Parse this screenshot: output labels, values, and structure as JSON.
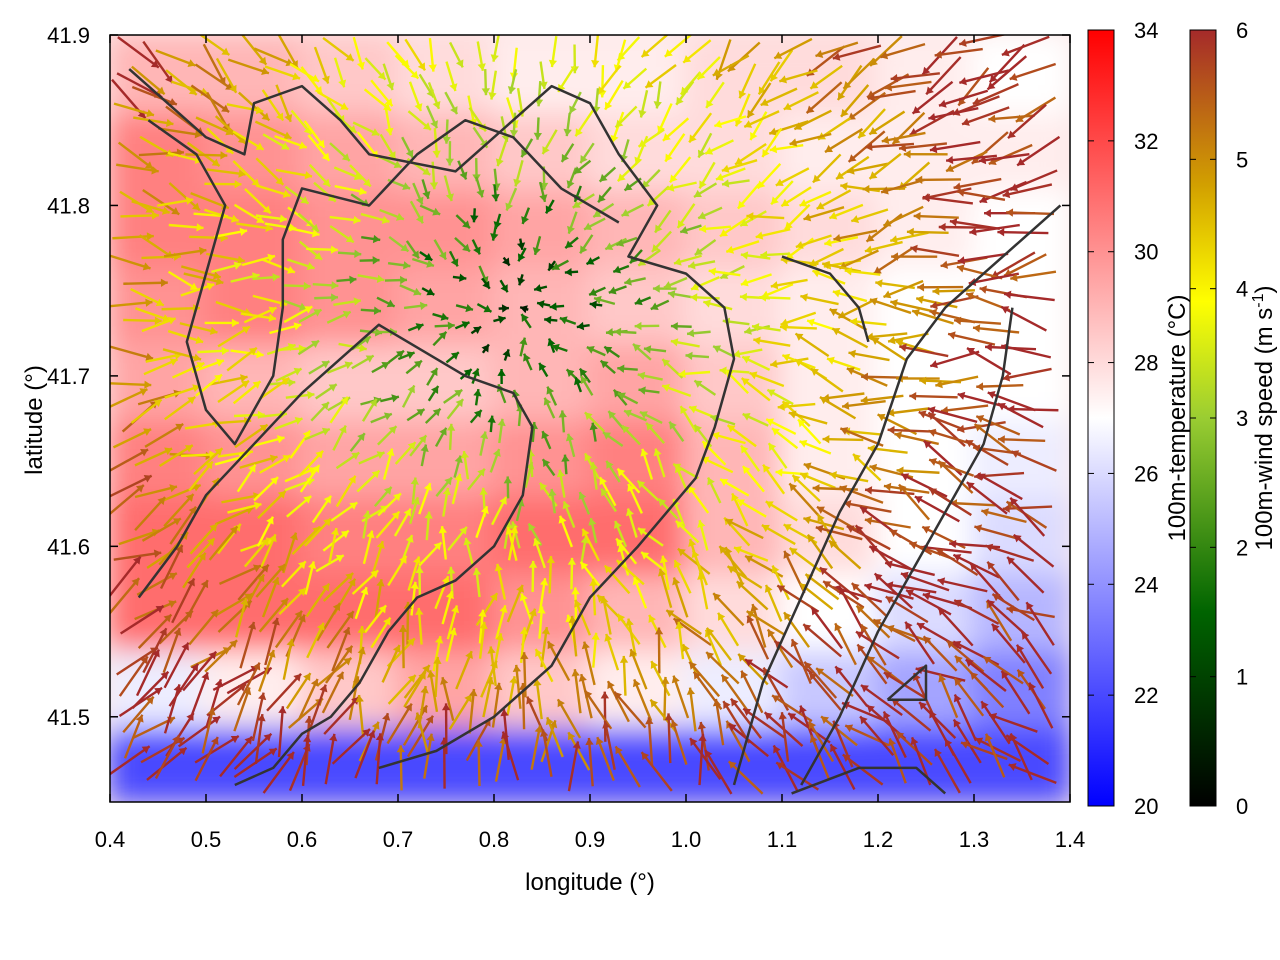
{
  "chart_data": {
    "type": "heatmap",
    "xlabel": "longitude (°)",
    "ylabel": "latitude (°)",
    "xlim": [
      0.4,
      1.4
    ],
    "ylim": [
      41.45,
      41.9
    ],
    "xticks": [
      0.4,
      0.5,
      0.6,
      0.7,
      0.8,
      0.9,
      1.0,
      1.1,
      1.2,
      1.3,
      1.4
    ],
    "xtick_labels": [
      "0.4",
      "0.5",
      "0.6",
      "0.7",
      "0.8",
      "0.9",
      "1.0",
      "1.1",
      "1.2",
      "1.3",
      "1.4"
    ],
    "yticks": [
      41.5,
      41.6,
      41.7,
      41.8,
      41.9
    ],
    "ytick_labels": [
      "41.5",
      "41.6",
      "41.7",
      "41.8",
      "41.9"
    ],
    "grid": false,
    "layers": {
      "heatmap": {
        "quantity": "100m-temperature",
        "colorbar_label": "100m-temperature (°C)",
        "range": [
          20,
          34
        ],
        "ticks": [
          20,
          22,
          24,
          26,
          28,
          30,
          32,
          34
        ],
        "tick_labels": [
          "20",
          "22",
          "24",
          "26",
          "28",
          "30",
          "32",
          "34"
        ],
        "colors": [
          "#0000ff",
          "#ffffff",
          "#ff0000"
        ],
        "field": [
          [
            22,
            22,
            22,
            22,
            22,
            22,
            22,
            22,
            22,
            22
          ],
          [
            26.5,
            27.5,
            28.5,
            29.5,
            28.5,
            27.5,
            26.5,
            25.5,
            24.5,
            23.5
          ],
          [
            31,
            31,
            31,
            31,
            30,
            29,
            28,
            27,
            26,
            25
          ],
          [
            31,
            31,
            30.5,
            30.5,
            31,
            31,
            29,
            28,
            27,
            26
          ],
          [
            30.5,
            30,
            29.5,
            29.5,
            30,
            30.5,
            29,
            27.5,
            27,
            26.5
          ],
          [
            29.5,
            29,
            28.5,
            28.5,
            29,
            29.5,
            28.5,
            27.5,
            27,
            27
          ],
          [
            30,
            30.5,
            30,
            29.5,
            29,
            28.5,
            28,
            27.5,
            27,
            27
          ],
          [
            30.5,
            30.5,
            30,
            30,
            29.5,
            29,
            28.5,
            28,
            27.5,
            27
          ],
          [
            30.5,
            30,
            29.5,
            29,
            28.5,
            28,
            28,
            27.5,
            27.5,
            27.5
          ],
          [
            29,
            29,
            28.5,
            28,
            27.5,
            27.5,
            28,
            28,
            27.5,
            27
          ]
        ]
      },
      "wind_vectors": {
        "quantity": "100m-wind speed",
        "colorbar_label": "100m-wind speed (m s⁻¹)",
        "colorbar_label_main": "100m-wind speed (m s",
        "colorbar_label_sup": "-1",
        "colorbar_label_end": ")",
        "range": [
          0,
          6
        ],
        "ticks": [
          0,
          1,
          2,
          3,
          4,
          5,
          6
        ],
        "tick_labels": [
          "0",
          "1",
          "2",
          "3",
          "4",
          "5",
          "6"
        ],
        "colors": [
          "#000000",
          "#006400",
          "#9acd32",
          "#ffff00",
          "#d2a000",
          "#a52a2a"
        ],
        "convergence_zone_approx": [
          0.82,
          41.74
        ]
      },
      "contours": {
        "color": "#333333",
        "lines": [
          [
            [
              0.42,
              41.88
            ],
            [
              0.5,
              41.84
            ],
            [
              0.54,
              41.83
            ],
            [
              0.55,
              41.86
            ],
            [
              0.6,
              41.87
            ],
            [
              0.64,
              41.85
            ],
            [
              0.67,
              41.83
            ],
            [
              0.76,
              41.82
            ],
            [
              0.82,
              41.85
            ],
            [
              0.86,
              41.87
            ],
            [
              0.9,
              41.86
            ],
            [
              0.93,
              41.83
            ],
            [
              0.97,
              41.8
            ],
            [
              0.94,
              41.77
            ],
            [
              1.0,
              41.76
            ],
            [
              1.04,
              41.74
            ],
            [
              1.05,
              41.71
            ],
            [
              1.03,
              41.67
            ],
            [
              1.01,
              41.64
            ],
            [
              0.95,
              41.6
            ],
            [
              0.9,
              41.57
            ],
            [
              0.86,
              41.53
            ],
            [
              0.8,
              41.5
            ],
            [
              0.74,
              41.48
            ],
            [
              0.68,
              41.47
            ]
          ],
          [
            [
              0.44,
              41.85
            ],
            [
              0.49,
              41.83
            ],
            [
              0.52,
              41.8
            ],
            [
              0.5,
              41.76
            ],
            [
              0.48,
              41.72
            ],
            [
              0.5,
              41.68
            ],
            [
              0.53,
              41.66
            ],
            [
              0.57,
              41.7
            ],
            [
              0.58,
              41.74
            ],
            [
              0.58,
              41.78
            ],
            [
              0.6,
              41.81
            ],
            [
              0.67,
              41.8
            ],
            [
              0.72,
              41.83
            ],
            [
              0.77,
              41.85
            ],
            [
              0.82,
              41.84
            ],
            [
              0.87,
              41.81
            ],
            [
              0.93,
              41.79
            ]
          ],
          [
            [
              0.43,
              41.57
            ],
            [
              0.47,
              41.6
            ],
            [
              0.5,
              41.63
            ],
            [
              0.55,
              41.66
            ],
            [
              0.6,
              41.69
            ],
            [
              0.64,
              41.71
            ],
            [
              0.68,
              41.73
            ],
            [
              0.71,
              41.72
            ],
            [
              0.77,
              41.7
            ],
            [
              0.82,
              41.69
            ],
            [
              0.84,
              41.67
            ],
            [
              0.83,
              41.63
            ],
            [
              0.8,
              41.6
            ],
            [
              0.76,
              41.58
            ],
            [
              0.72,
              41.57
            ],
            [
              0.69,
              41.55
            ],
            [
              0.66,
              41.52
            ],
            [
              0.63,
              41.5
            ],
            [
              0.6,
              41.49
            ],
            [
              0.57,
              41.47
            ],
            [
              0.53,
              41.46
            ]
          ],
          [
            [
              1.05,
              41.46
            ],
            [
              1.08,
              41.52
            ],
            [
              1.12,
              41.57
            ],
            [
              1.16,
              41.62
            ],
            [
              1.2,
              41.66
            ],
            [
              1.23,
              41.71
            ],
            [
              1.27,
              41.74
            ],
            [
              1.31,
              41.76
            ],
            [
              1.35,
              41.78
            ],
            [
              1.39,
              41.8
            ]
          ],
          [
            [
              1.12,
              41.46
            ],
            [
              1.16,
              41.5
            ],
            [
              1.2,
              41.55
            ],
            [
              1.24,
              41.59
            ],
            [
              1.28,
              41.63
            ],
            [
              1.31,
              41.66
            ],
            [
              1.33,
              41.7
            ],
            [
              1.34,
              41.74
            ]
          ],
          [
            [
              1.21,
              41.51
            ],
            [
              1.23,
              41.52
            ],
            [
              1.25,
              41.53
            ],
            [
              1.25,
              41.51
            ],
            [
              1.21,
              41.51
            ]
          ],
          [
            [
              1.11,
              41.455
            ],
            [
              1.18,
              41.47
            ],
            [
              1.24,
              41.47
            ],
            [
              1.27,
              41.455
            ]
          ],
          [
            [
              1.1,
              41.77
            ],
            [
              1.15,
              41.76
            ],
            [
              1.18,
              41.74
            ],
            [
              1.19,
              41.72
            ]
          ]
        ]
      }
    }
  }
}
